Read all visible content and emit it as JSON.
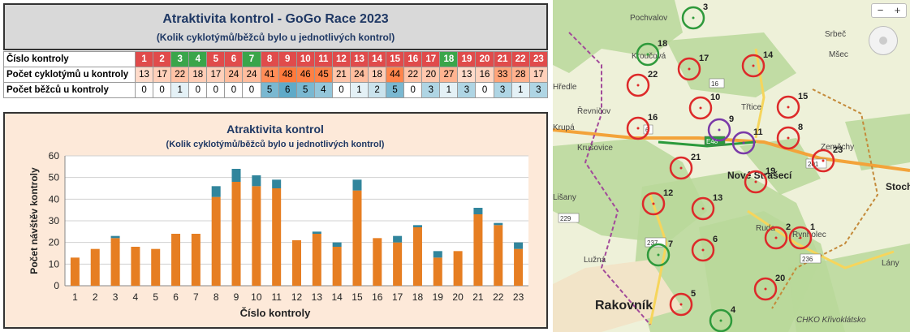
{
  "header": {
    "title": "Atraktivita kontrol - GoGo Race 2023",
    "subtitle": "(Kolik cyklotýmů/běžců  bylo u jednotlivých kontrol)"
  },
  "table": {
    "row_labels": [
      "Číslo kontroly",
      "Počet cyklotýmů u kontroly",
      "Počet běžců u kontroly"
    ],
    "controls": [
      "1",
      "2",
      "3",
      "4",
      "5",
      "6",
      "7",
      "8",
      "9",
      "10",
      "11",
      "12",
      "13",
      "14",
      "15",
      "16",
      "17",
      "18",
      "19",
      "20",
      "21",
      "22",
      "23"
    ],
    "control_colors": [
      "#e04b4b",
      "#e04b4b",
      "#3aa54a",
      "#3aa54a",
      "#e04b4b",
      "#e04b4b",
      "#3aa54a",
      "#e04b4b",
      "#e04b4b",
      "#e04b4b",
      "#e04b4b",
      "#e04b4b",
      "#e04b4b",
      "#e04b4b",
      "#e04b4b",
      "#e04b4b",
      "#e04b4b",
      "#3aa54a",
      "#e04b4b",
      "#e04b4b",
      "#e04b4b",
      "#e04b4b",
      "#e04b4b"
    ],
    "cyclists": [
      "13",
      "17",
      "22",
      "18",
      "17",
      "24",
      "24",
      "41",
      "48",
      "46",
      "45",
      "21",
      "24",
      "18",
      "44",
      "22",
      "20",
      "27",
      "13",
      "16",
      "33",
      "28",
      "17"
    ],
    "runners": [
      "0",
      "0",
      "1",
      "0",
      "0",
      "0",
      "0",
      "5",
      "6",
      "5",
      "4",
      "0",
      "1",
      "2",
      "5",
      "0",
      "3",
      "1",
      "3",
      "0",
      "3",
      "1",
      "3"
    ]
  },
  "chart_data": {
    "type": "bar",
    "title": "Atraktivita kontrol",
    "subtitle": "(Kolik cyklotýmů/běžců bylo u jednotlivých kontrol)",
    "xlabel": "Číslo kontroly",
    "ylabel": "Počet návštěv kontroly",
    "ylim": [
      0,
      60
    ],
    "yticks": [
      0,
      10,
      20,
      30,
      40,
      50,
      60
    ],
    "stacked": true,
    "grid": true,
    "categories": [
      "1",
      "2",
      "3",
      "4",
      "5",
      "6",
      "7",
      "8",
      "9",
      "10",
      "11",
      "12",
      "13",
      "14",
      "15",
      "16",
      "17",
      "18",
      "19",
      "20",
      "21",
      "22",
      "23"
    ],
    "series": [
      {
        "values": [
          13,
          17,
          22,
          18,
          17,
          24,
          24,
          41,
          48,
          46,
          45,
          21,
          24,
          18,
          44,
          22,
          20,
          27,
          13,
          16,
          33,
          28,
          17
        ],
        "color": "#e67e22"
      },
      {
        "values": [
          0,
          0,
          1,
          0,
          0,
          0,
          0,
          5,
          6,
          5,
          4,
          0,
          1,
          2,
          5,
          0,
          3,
          1,
          3,
          0,
          3,
          1,
          3
        ],
        "color": "#31859c"
      }
    ]
  },
  "map": {
    "places": [
      "Pochvalov",
      "Srbeč",
      "Mšec",
      "Kroučová",
      "Hředle",
      "Řevničov",
      "Krupá",
      "Třtice",
      "Krušovice",
      "Lišany",
      "Nové Strašecí",
      "Stochov",
      "Ruda",
      "Rynholec",
      "Lány",
      "Lužná",
      "Rakovník",
      "CHKO Křivoklátsko",
      "Zeměchy"
    ],
    "roads": [
      "6",
      "E48",
      "237",
      "229",
      "236",
      "16",
      "201"
    ],
    "controls": [
      "1",
      "2",
      "3",
      "4",
      "5",
      "6",
      "7",
      "8",
      "9",
      "10",
      "11",
      "12",
      "13",
      "14",
      "15",
      "16",
      "17",
      "18",
      "19",
      "20",
      "21",
      "22",
      "23"
    ],
    "zoom_in": "+",
    "zoom_out": "−"
  }
}
